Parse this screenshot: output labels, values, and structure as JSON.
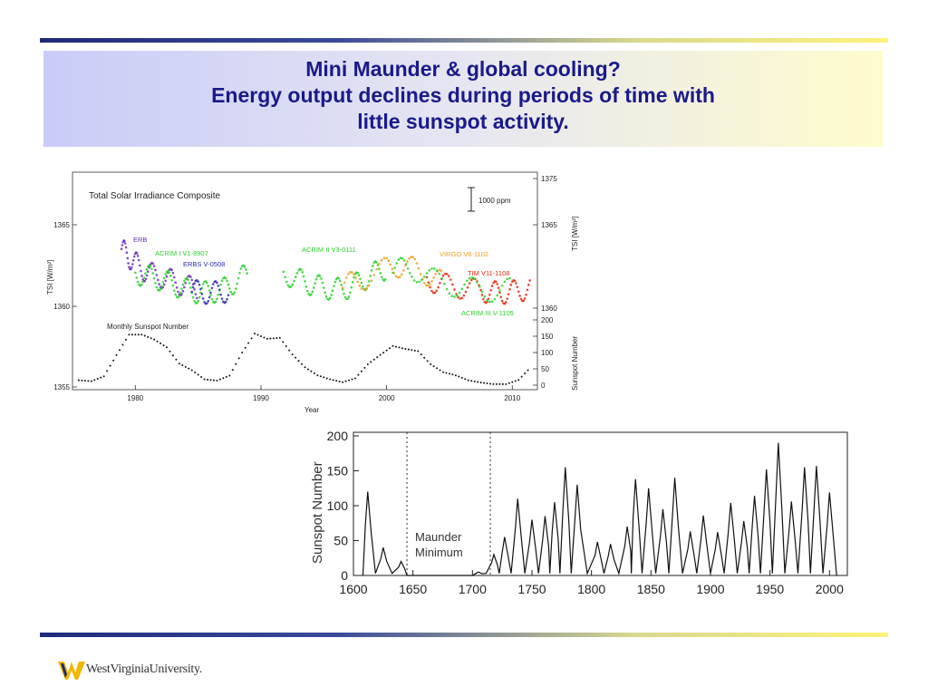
{
  "slide": {
    "title_line1": "Mini Maunder & global cooling?",
    "title_line2": "Energy output declines during periods of time with little sunspot activity.",
    "logo_text": "WestVirginiaUniversity."
  },
  "colors": {
    "title": "#1a1a8a",
    "rule_dark": "#1f2a7a",
    "rule_light": "#fff27a",
    "erb": "#6a2fb8",
    "acrim1": "#2bd12b",
    "erbs": "#2a2ab0",
    "acrim2": "#2bd12b",
    "virgo": "#e8a020",
    "tim": "#e02a10",
    "acrim3": "#2bd12b"
  },
  "chart_data": [
    {
      "type": "scatter",
      "title": "Total Solar Irradiance Composite",
      "xlabel": "Year",
      "ylabel_left": "TSI [W/m²]",
      "ylabel_right_top": "TSI [W/m²]",
      "ylabel_right_bottom": "Sunspot Number",
      "xlim": [
        1975,
        2012
      ],
      "x_ticks": [
        "1980",
        "1990",
        "2000",
        "2010"
      ],
      "y_ticks_left": [
        "1355",
        "1360",
        "1365"
      ],
      "y_ticks_right_tsi": [
        "1360",
        "1365",
        "1375"
      ],
      "y_ticks_right_sunspot": [
        "0",
        "50",
        "100",
        "150",
        "200"
      ],
      "scale_bar_label": "1000 ppm",
      "sunspot_label": "Monthly Sunspot Number",
      "series": [
        {
          "name": "ERB",
          "color_key": "erb",
          "x": [
            1978.9,
            1979.5,
            1980.2,
            1981.0,
            1982.0,
            1983.0,
            1984.0,
            1985.0
          ],
          "y": [
            1363.5,
            1363.0,
            1362.5,
            1362.0,
            1361.8,
            1361.5,
            1361.2,
            1361.0
          ]
        },
        {
          "name": "ACRIM I V1-8907",
          "color_key": "acrim1",
          "x": [
            1980.0,
            1981.0,
            1982.0,
            1983.0,
            1984.0,
            1985.0,
            1986.0,
            1987.0,
            1988.0,
            1989.0
          ],
          "y": [
            1362.0,
            1361.8,
            1361.6,
            1361.3,
            1361.0,
            1360.8,
            1360.8,
            1361.0,
            1361.5,
            1362.0
          ]
        },
        {
          "name": "ERBS V-0508",
          "color_key": "erbs",
          "x": [
            1984.5,
            1985.5,
            1986.5,
            1987.5
          ],
          "y": [
            1360.9,
            1360.8,
            1360.8,
            1360.9
          ]
        },
        {
          "name": "ACRIM II V3-0111",
          "color_key": "acrim2",
          "x": [
            1991.8,
            1993.0,
            1994.0,
            1995.0,
            1996.0,
            1997.0,
            1998.0,
            1999.0,
            2000.0
          ],
          "y": [
            1362.0,
            1361.6,
            1361.3,
            1361.1,
            1361.0,
            1361.1,
            1361.5,
            1362.0,
            1362.3
          ]
        },
        {
          "name": "VIRGO V6-1102",
          "color_key": "virgo",
          "x": [
            1996.5,
            1998.0,
            2000.0,
            2001.5,
            2003.0,
            2004.5
          ],
          "y": [
            1361.2,
            1361.6,
            1362.3,
            1362.5,
            1362.0,
            1361.4
          ]
        },
        {
          "name": "TIM V11-1108",
          "color_key": "tim",
          "x": [
            2003.2,
            2004.5,
            2006.0,
            2007.5,
            2008.5,
            2009.5,
            2010.5,
            2011.5
          ],
          "y": [
            1361.6,
            1361.3,
            1361.1,
            1360.9,
            1360.8,
            1360.8,
            1360.9,
            1361.1
          ]
        },
        {
          "name": "ACRIM III V-1105",
          "color_key": "acrim3",
          "x": [
            2000.5,
            2002.0,
            2004.0,
            2006.0,
            2008.0,
            2010.0
          ],
          "y": [
            1362.2,
            1362.3,
            1361.5,
            1361.1,
            1360.9,
            1361.0
          ]
        },
        {
          "name": "Monthly Sunspot Number",
          "color_key": "",
          "x": [
            1975.5,
            1976.5,
            1977.5,
            1978.5,
            1979.5,
            1980.5,
            1981.5,
            1982.5,
            1983.5,
            1984.5,
            1985.5,
            1986.5,
            1987.5,
            1988.5,
            1989.5,
            1990.5,
            1991.5,
            1992.5,
            1993.5,
            1994.5,
            1995.5,
            1996.5,
            1997.5,
            1998.5,
            1999.5,
            2000.5,
            2001.5,
            2002.5,
            2003.5,
            2004.5,
            2005.5,
            2006.5,
            2007.5,
            2008.5,
            2009.5,
            2010.5,
            2011.5
          ],
          "y": [
            15,
            12,
            27,
            92,
            155,
            155,
            140,
            116,
            66,
            46,
            18,
            14,
            29,
            100,
            158,
            142,
            145,
            94,
            55,
            30,
            18,
            9,
            21,
            64,
            93,
            120,
            111,
            104,
            64,
            40,
            30,
            15,
            8,
            3,
            3,
            16,
            56
          ]
        }
      ]
    },
    {
      "type": "line",
      "title": "",
      "xlabel": "",
      "ylabel": "Sunspot Number",
      "xlim": [
        1600,
        2015
      ],
      "ylim": [
        0,
        200
      ],
      "x_ticks": [
        "1600",
        "1650",
        "1700",
        "1750",
        "1800",
        "1850",
        "1900",
        "1950",
        "2000"
      ],
      "y_ticks": [
        "0",
        "50",
        "100",
        "150",
        "200"
      ],
      "annotation_line1": "Maunder",
      "annotation_line2": "Minimum",
      "maunder_bounds": [
        1645,
        1715
      ],
      "peaks": {
        "x": [
          1612,
          1625,
          1640,
          1705,
          1718,
          1727,
          1738,
          1750,
          1761,
          1769,
          1778,
          1788,
          1805,
          1816,
          1830,
          1837,
          1848,
          1860,
          1870,
          1883,
          1894,
          1906,
          1917,
          1928,
          1937,
          1947,
          1957,
          1968,
          1979,
          1989,
          2000
        ],
        "y": [
          120,
          40,
          20,
          5,
          30,
          55,
          110,
          80,
          85,
          105,
          155,
          130,
          48,
          45,
          70,
          138,
          125,
          95,
          140,
          63,
          86,
          62,
          104,
          78,
          114,
          152,
          190,
          106,
          155,
          157,
          119
        ]
      }
    }
  ]
}
